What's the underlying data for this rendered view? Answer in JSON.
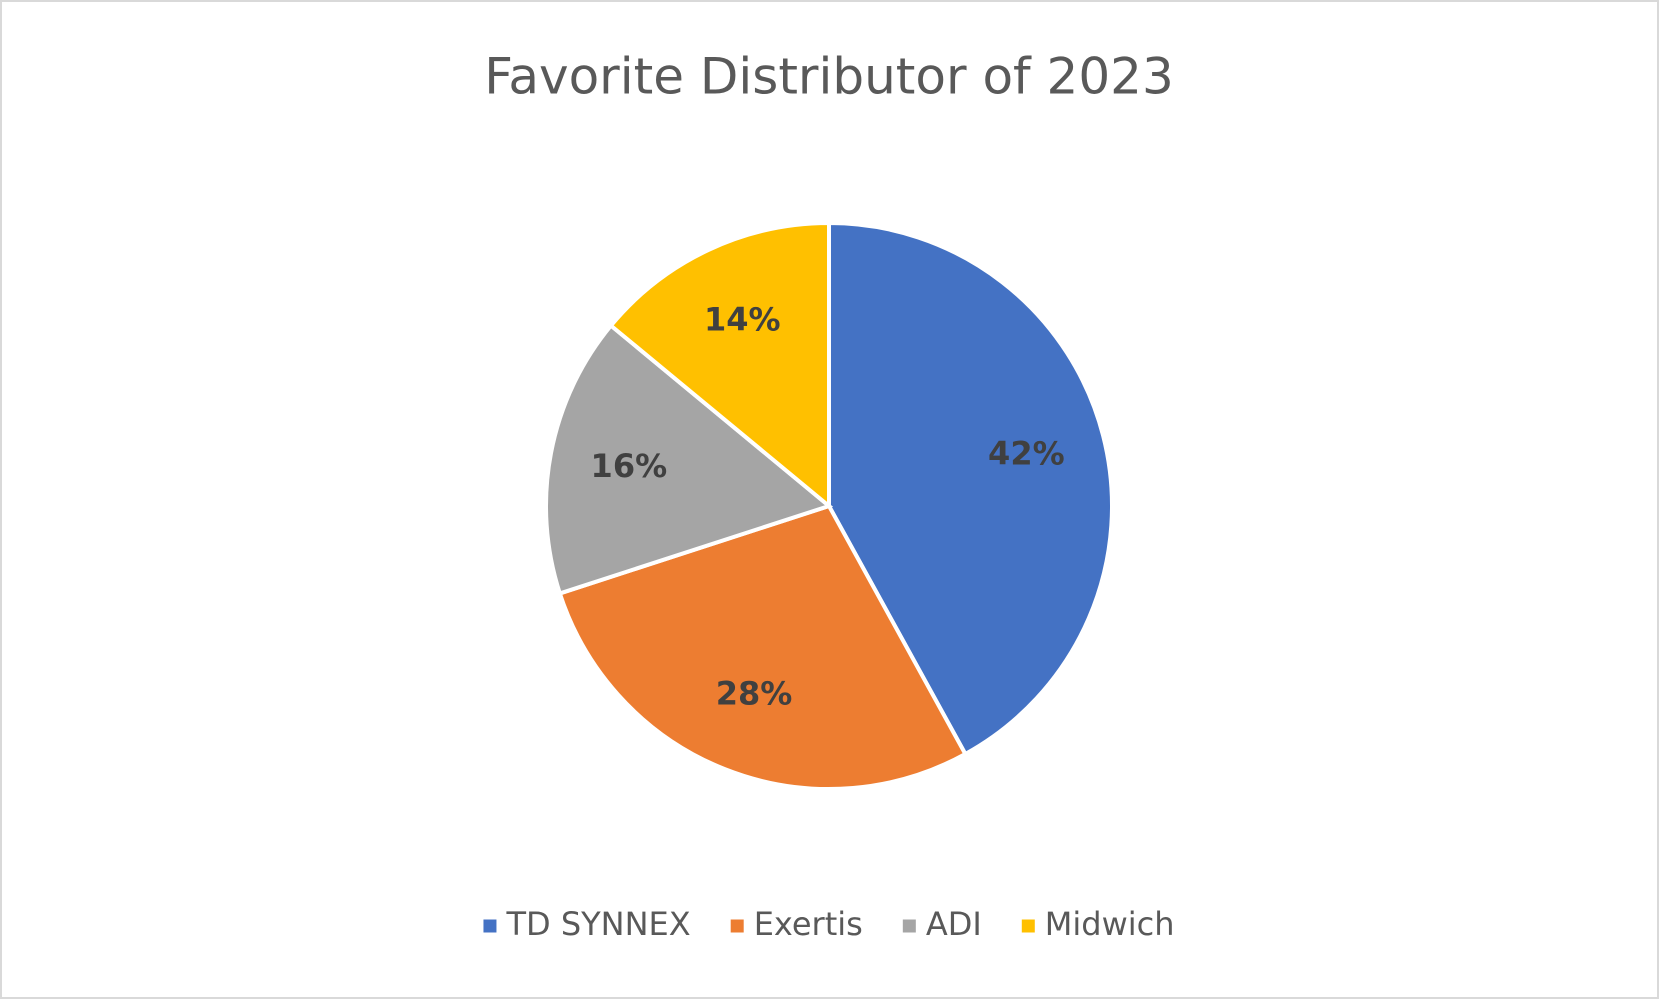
{
  "chart_data": {
    "type": "pie",
    "title": "Favorite Distributor of 2023",
    "categories": [
      "TD SYNNEX",
      "Exertis",
      "ADI",
      "Midwich"
    ],
    "values": [
      42,
      28,
      16,
      14
    ],
    "value_labels": [
      "42%",
      "28%",
      "16%",
      "14%"
    ],
    "colors": [
      "#4472c4",
      "#ed7d31",
      "#a5a5a5",
      "#ffc000"
    ],
    "legend": "bottom"
  }
}
